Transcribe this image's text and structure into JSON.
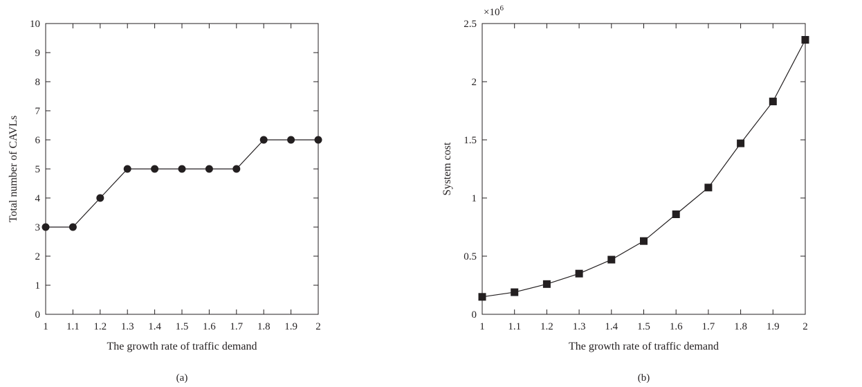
{
  "chart_data": [
    {
      "type": "line",
      "panel_label": "(a)",
      "xlabel": "The growth rate of traffic demand",
      "ylabel": "Total number of CAVLs",
      "xlim": [
        1,
        2
      ],
      "ylim": [
        0,
        10
      ],
      "x_ticks": [
        1,
        1.1,
        1.2,
        1.3,
        1.4,
        1.5,
        1.6,
        1.7,
        1.8,
        1.9,
        2
      ],
      "x_tick_labels": [
        "1",
        "1.1",
        "1.2",
        "1.3",
        "1.4",
        "1.5",
        "1.6",
        "1.7",
        "1.8",
        "1.9",
        "2"
      ],
      "y_ticks": [
        0,
        1,
        2,
        3,
        4,
        5,
        6,
        7,
        8,
        9,
        10
      ],
      "y_tick_labels": [
        "0",
        "1",
        "2",
        "3",
        "4",
        "5",
        "6",
        "7",
        "8",
        "9",
        "10"
      ],
      "marker": "circle",
      "grid": false,
      "x": [
        1,
        1.1,
        1.2,
        1.3,
        1.4,
        1.5,
        1.6,
        1.7,
        1.8,
        1.9,
        2
      ],
      "values": [
        3,
        3,
        4,
        5,
        5,
        5,
        5,
        5,
        6,
        6,
        6
      ]
    },
    {
      "type": "line",
      "panel_label": "(b)",
      "xlabel": "The growth rate of traffic demand",
      "ylabel": "System cost",
      "scale_label": "×10",
      "scale_exponent": "6",
      "xlim": [
        1,
        2
      ],
      "ylim": [
        0,
        2.5
      ],
      "x_ticks": [
        1,
        1.1,
        1.2,
        1.3,
        1.4,
        1.5,
        1.6,
        1.7,
        1.8,
        1.9,
        2
      ],
      "x_tick_labels": [
        "1",
        "1.1",
        "1.2",
        "1.3",
        "1.4",
        "1.5",
        "1.6",
        "1.7",
        "1.8",
        "1.9",
        "2"
      ],
      "y_ticks": [
        0,
        0.5,
        1,
        1.5,
        2,
        2.5
      ],
      "y_tick_labels": [
        "0",
        "0.5",
        "1",
        "1.5",
        "2",
        "2.5"
      ],
      "marker": "square",
      "grid": false,
      "x": [
        1,
        1.1,
        1.2,
        1.3,
        1.4,
        1.5,
        1.6,
        1.7,
        1.8,
        1.9,
        2
      ],
      "values": [
        0.15,
        0.19,
        0.26,
        0.35,
        0.47,
        0.63,
        0.86,
        1.09,
        1.47,
        1.83,
        2.36
      ]
    }
  ]
}
